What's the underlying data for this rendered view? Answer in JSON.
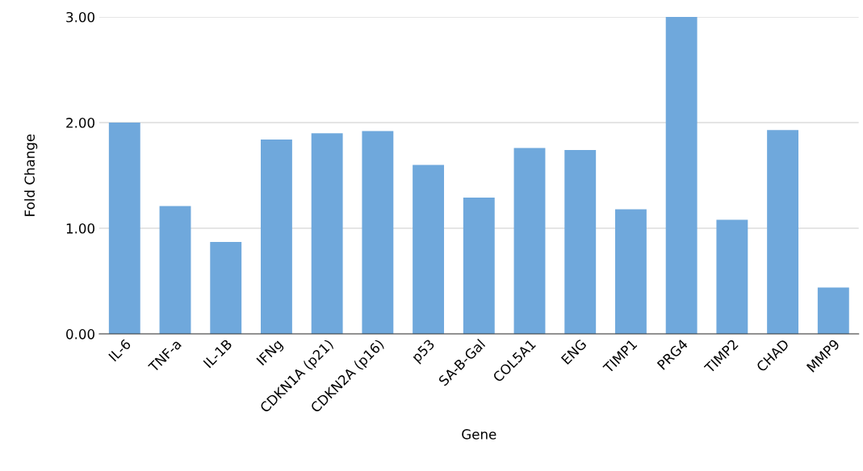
{
  "chart_data": {
    "type": "bar",
    "xlabel": "Gene",
    "ylabel": "Fold Change",
    "categories": [
      "IL-6",
      "TNF-a",
      "IL-1B",
      "IFNg",
      "CDKN1A (p21)",
      "CDKN2A (p16)",
      "p53",
      "SA-B-Gal",
      "COL5A1",
      "ENG",
      "TIMP1",
      "PRG4",
      "TIMP2",
      "CHAD",
      "MMP9"
    ],
    "values": [
      2.0,
      1.21,
      0.87,
      1.84,
      1.9,
      1.92,
      1.6,
      1.29,
      1.76,
      1.74,
      1.18,
      3.0,
      1.08,
      1.93,
      0.44
    ],
    "color": "#6fa8dc",
    "ylim": [
      0,
      3
    ],
    "yticks": [
      {
        "value": 0,
        "label": "0.00"
      },
      {
        "value": 1,
        "label": "1.00"
      },
      {
        "value": 2,
        "label": "2.00"
      },
      {
        "value": 3,
        "label": "3.00"
      }
    ],
    "grid": "y"
  }
}
